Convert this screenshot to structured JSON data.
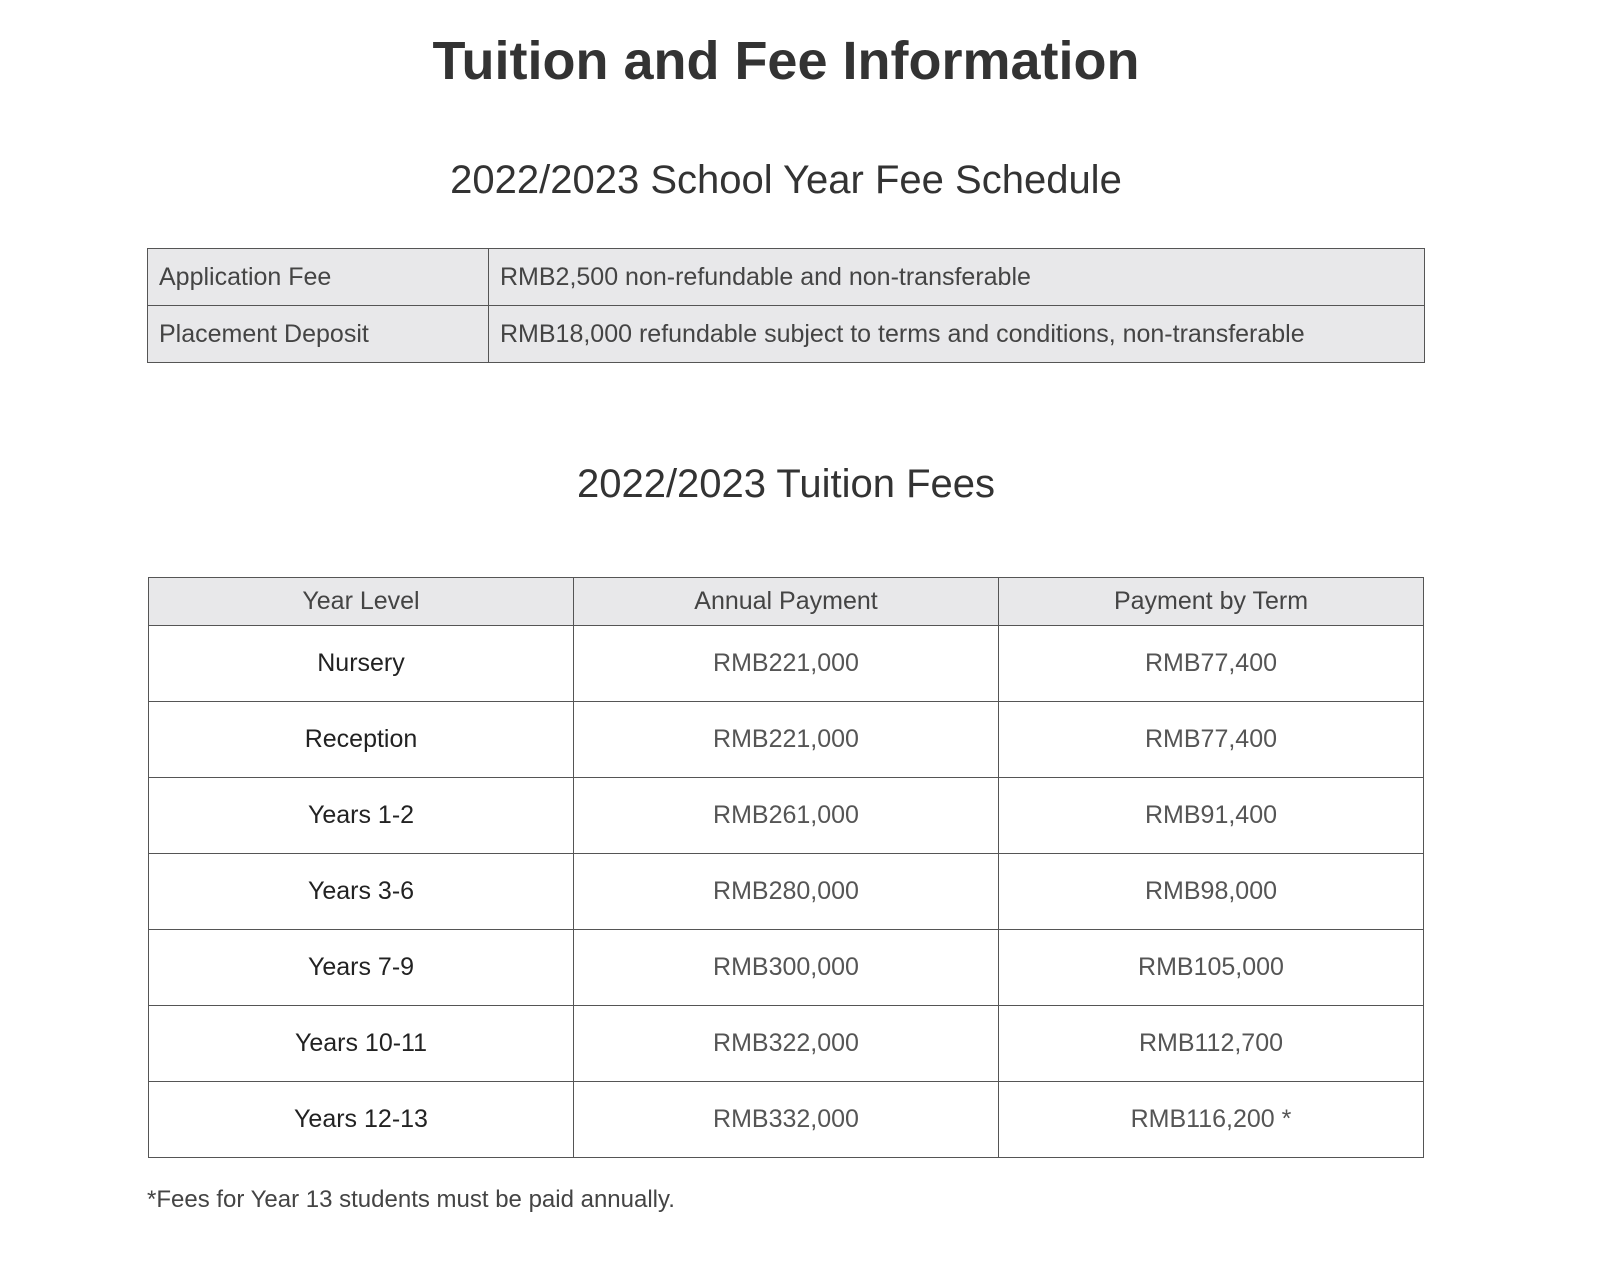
{
  "title": "Tuition and Fee Information",
  "fee_schedule": {
    "heading": "2022/2023 School Year Fee Schedule",
    "rows": [
      {
        "item": "Application Fee",
        "detail": "RMB2,500 non-refundable and non-transferable"
      },
      {
        "item": "Placement Deposit",
        "detail": "RMB18,000 refundable subject to terms and conditions, non-transferable"
      }
    ]
  },
  "tuition": {
    "heading": "2022/2023 Tuition Fees",
    "columns": [
      "Year Level",
      "Annual Payment",
      "Payment by Term"
    ],
    "rows": [
      [
        "Nursery",
        "RMB221,000",
        "RMB77,400"
      ],
      [
        "Reception",
        "RMB221,000",
        "RMB77,400"
      ],
      [
        "Years 1-2",
        "RMB261,000",
        "RMB91,400"
      ],
      [
        "Years 3-6",
        "RMB280,000",
        "RMB98,000"
      ],
      [
        "Years 7-9",
        "RMB300,000",
        "RMB105,000"
      ],
      [
        "Years 10-11",
        "RMB322,000",
        "RMB112,700"
      ],
      [
        "Years 12-13",
        "RMB332,000",
        "RMB116,200 *"
      ]
    ]
  },
  "footnote": "*Fees for Year 13 students must be paid annually."
}
